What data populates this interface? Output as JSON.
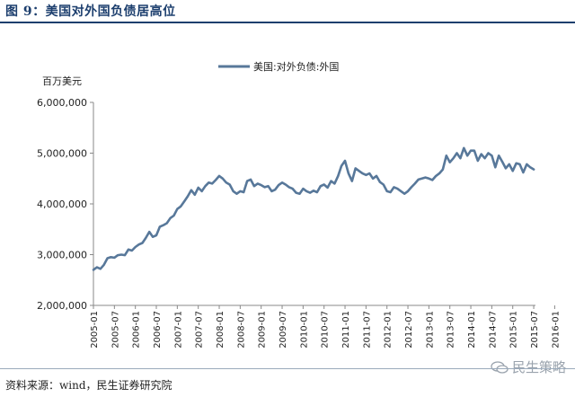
{
  "header": {
    "title": "图 9：美国对外国负债居高位"
  },
  "footer": {
    "source": "资料来源：wind，民生证券研究院"
  },
  "watermark": {
    "text": "民生策略",
    "icon": "wechat-icon"
  },
  "colors": {
    "series": "#58789a",
    "axis": "#888888",
    "title": "#1d3f6e"
  },
  "chart_data": {
    "type": "line",
    "title": "",
    "xlabel": "",
    "ylabel": "百万美元",
    "ylim": [
      2000000,
      6000000
    ],
    "yticks": [
      2000000,
      3000000,
      4000000,
      5000000,
      6000000
    ],
    "ytick_labels": [
      "2,000,000",
      "3,000,000",
      "4,000,000",
      "5,000,000",
      "6,000,000"
    ],
    "xtick_labels": [
      "2005-01",
      "2005-07",
      "2006-01",
      "2006-07",
      "2007-01",
      "2007-07",
      "2008-01",
      "2008-07",
      "2009-01",
      "2009-07",
      "2010-01",
      "2010-07",
      "2011-01",
      "2011-07",
      "2012-01",
      "2012-07",
      "2013-01",
      "2013-07",
      "2014-01",
      "2014-07",
      "2015-01",
      "2015-07",
      "2016-01"
    ],
    "grid": false,
    "legend_position": "top-center",
    "series": [
      {
        "name": "美国:对外负债:外国",
        "start": "2005-01",
        "frequency": "monthly",
        "values": [
          2700000,
          2750000,
          2720000,
          2800000,
          2930000,
          2950000,
          2940000,
          2990000,
          3000000,
          2990000,
          3100000,
          3080000,
          3150000,
          3200000,
          3230000,
          3330000,
          3450000,
          3350000,
          3380000,
          3550000,
          3580000,
          3620000,
          3720000,
          3770000,
          3900000,
          3950000,
          4050000,
          4150000,
          4270000,
          4180000,
          4320000,
          4250000,
          4350000,
          4420000,
          4400000,
          4470000,
          4550000,
          4500000,
          4420000,
          4380000,
          4250000,
          4200000,
          4250000,
          4230000,
          4450000,
          4480000,
          4350000,
          4400000,
          4370000,
          4330000,
          4350000,
          4250000,
          4280000,
          4370000,
          4420000,
          4380000,
          4330000,
          4300000,
          4220000,
          4200000,
          4300000,
          4250000,
          4220000,
          4260000,
          4230000,
          4350000,
          4380000,
          4320000,
          4450000,
          4400000,
          4550000,
          4750000,
          4850000,
          4600000,
          4450000,
          4700000,
          4650000,
          4600000,
          4570000,
          4600000,
          4500000,
          4550000,
          4430000,
          4380000,
          4250000,
          4230000,
          4330000,
          4300000,
          4250000,
          4200000,
          4250000,
          4330000,
          4400000,
          4480000,
          4500000,
          4520000,
          4500000,
          4470000,
          4550000,
          4600000,
          4680000,
          4950000,
          4820000,
          4900000,
          5000000,
          4900000,
          5100000,
          4950000,
          5050000,
          5050000,
          4850000,
          4980000,
          4900000,
          5000000,
          4950000,
          4720000,
          4950000,
          4830000,
          4700000,
          4780000,
          4650000,
          4800000,
          4780000,
          4620000,
          4780000,
          4720000,
          4680000
        ]
      }
    ]
  }
}
